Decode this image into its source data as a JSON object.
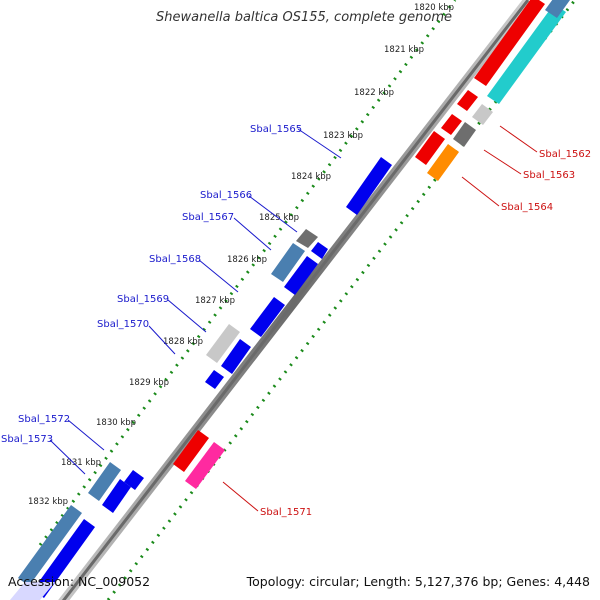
{
  "title": "Shewanella baltica OS155, complete genome",
  "accession_label": "Accession: NC_009052",
  "summary": "Topology: circular; Length: 5,127,376 bp; Genes: 4,448",
  "colors": {
    "backbone": "#7a7a7a",
    "dots": "#1a8a1a",
    "forward_cds": "#0000ee",
    "steelblue_cds": "#4a7fb0",
    "light_gray_cds": "#c8c8c8",
    "dark_gray_cds": "#6e6e6e",
    "reverse_cds": "#ee0000",
    "cyan_cds": "#22cccc",
    "pink_cds": "#ff2aa0",
    "orange_cds": "#ff8c00",
    "forward_label": "#1a1acc",
    "reverse_label": "#cc1111"
  },
  "kbp_ticks": [
    "1820 kbp",
    "1821 kbp",
    "1822 kbp",
    "1823 kbp",
    "1824 kbp",
    "1825 kbp",
    "1826 kbp",
    "1827 kbp",
    "1828 kbp",
    "1829 kbp",
    "1830 kbp",
    "1831 kbp",
    "1832 kbp"
  ],
  "forward_gene_labels": [
    "Sbal_1565",
    "Sbal_1566",
    "Sbal_1567",
    "Sbal_1568",
    "Sbal_1569",
    "Sbal_1570",
    "Sbal_1572",
    "Sbal_1573"
  ],
  "reverse_gene_labels": [
    "Sbal_1562",
    "Sbal_1563",
    "Sbal_1564",
    "Sbal_1571"
  ]
}
